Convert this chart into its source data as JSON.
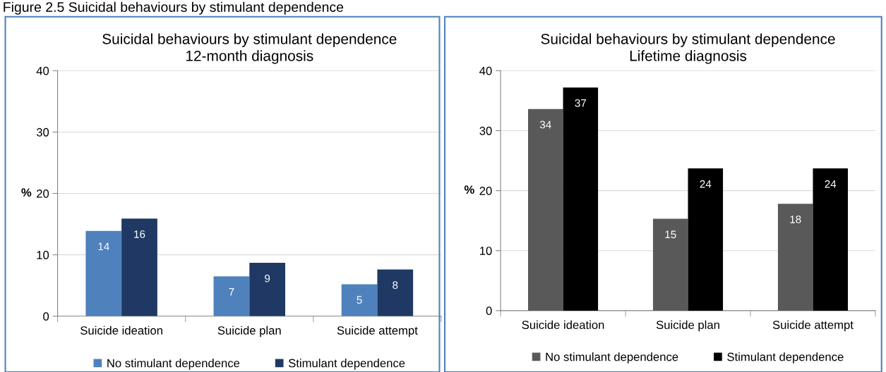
{
  "chart_data": [
    {
      "type": "bar",
      "title": "Suicidal behaviours by stimulant dependence",
      "subtitle": "12-month diagnosis",
      "ylabel": "%",
      "annotations": [
        "Figure 2.5 Suicidal behaviours by stimulant dependence"
      ],
      "categories": [
        "Suicide ideation",
        "Suicide plan",
        "Suicide attempt"
      ],
      "series": [
        {
          "name": "No stimulant dependence",
          "color": "#4f81bd",
          "values": [
            13.9,
            6.5,
            5.2
          ],
          "value_labels": [
            "14",
            "7",
            "5"
          ]
        },
        {
          "name": "Stimulant dependence",
          "color": "#1f3864",
          "values": [
            15.9,
            8.7,
            7.6
          ],
          "value_labels": [
            "16",
            "9",
            "8"
          ]
        }
      ],
      "ylim": [
        0,
        40
      ],
      "yticks": [
        0,
        10,
        20,
        30,
        40
      ],
      "grid": "y",
      "legend": "bottom"
    },
    {
      "type": "bar",
      "title": "Suicidal behaviours by stimulant dependence",
      "subtitle": "Lifetime diagnosis",
      "ylabel": "%",
      "categories": [
        "Suicide ideation",
        "Suicide plan",
        "Suicide attempt"
      ],
      "series": [
        {
          "name": "No stimulant dependence",
          "color": "#595959",
          "values": [
            33.6,
            15.3,
            17.8
          ],
          "value_labels": [
            "34",
            "15",
            "18"
          ]
        },
        {
          "name": "Stimulant dependence",
          "color": "#000000",
          "values": [
            37.2,
            23.7,
            23.7
          ],
          "value_labels": [
            "37",
            "24",
            "24"
          ]
        }
      ],
      "ylim": [
        0,
        40
      ],
      "yticks": [
        0,
        10,
        20,
        30,
        40
      ],
      "grid": "y",
      "legend": "bottom"
    }
  ]
}
